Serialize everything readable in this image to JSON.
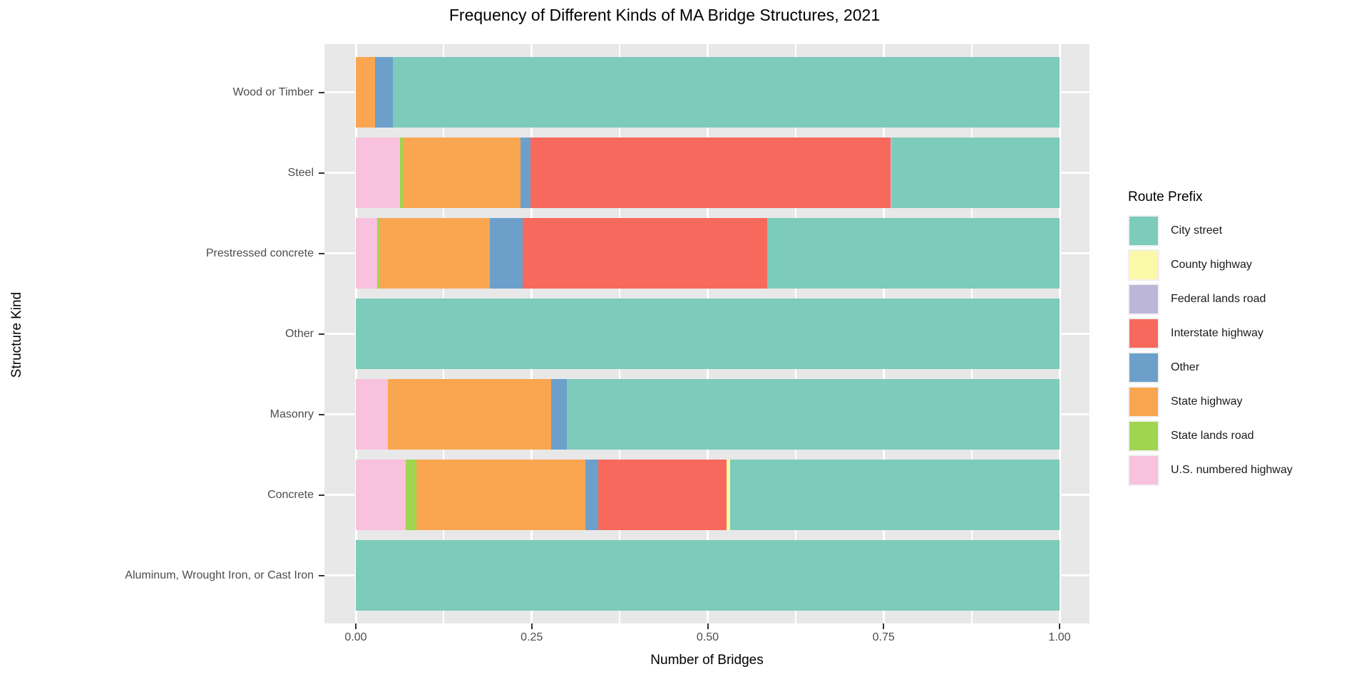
{
  "title": "Frequency of Different Kinds of MA Bridge Structures, 2021",
  "x_axis": {
    "label": "Number of Bridges",
    "ticks": [
      "0.00",
      "0.25",
      "0.50",
      "0.75",
      "1.00"
    ],
    "tick_values": [
      0,
      0.25,
      0.5,
      0.75,
      1
    ]
  },
  "y_axis": {
    "label": "Structure Kind"
  },
  "legend": {
    "title": "Route Prefix",
    "entries": [
      {
        "label": "City street",
        "color": "#7dcbba"
      },
      {
        "label": "County highway",
        "color": "#faf8a9"
      },
      {
        "label": "Federal lands road",
        "color": "#bcb7d9"
      },
      {
        "label": "Interstate highway",
        "color": "#f7695d"
      },
      {
        "label": "Other",
        "color": "#6ca0cb"
      },
      {
        "label": "State highway",
        "color": "#faa650"
      },
      {
        "label": "State lands road",
        "color": "#9fd54f"
      },
      {
        "label": "U.S. numbered highway",
        "color": "#f8c1dd"
      }
    ]
  },
  "colors": {
    "panel_background": "#e8e8e8",
    "gridline": "#ffffff",
    "tick_text": "#4d4d4d"
  },
  "chart_data": {
    "type": "bar",
    "orientation": "horizontal",
    "stacked": true,
    "normalized": true,
    "title": "Frequency of Different Kinds of MA Bridge Structures, 2021",
    "xlabel": "Number of Bridges",
    "ylabel": "Structure Kind",
    "xlim": [
      0,
      1
    ],
    "grid": true,
    "legend_position": "right",
    "legend_title": "Route Prefix",
    "categories": [
      "Wood or Timber",
      "Steel",
      "Prestressed concrete",
      "Other",
      "Masonry",
      "Concrete",
      "Aluminum, Wrought Iron, or Cast Iron"
    ],
    "series": [
      {
        "name": "U.S. numbered highway",
        "color": "#f8c1dd",
        "values": [
          0,
          0.063,
          0.03,
          0,
          0.046,
          0.071,
          0
        ]
      },
      {
        "name": "State lands road",
        "color": "#9fd54f",
        "values": [
          0,
          0.004,
          0.004,
          0,
          0,
          0.015,
          0
        ]
      },
      {
        "name": "State highway",
        "color": "#faa650",
        "values": [
          0.027,
          0.167,
          0.156,
          0,
          0.232,
          0.24,
          0
        ]
      },
      {
        "name": "Other",
        "color": "#6ca0cb",
        "values": [
          0.026,
          0.014,
          0.047,
          0,
          0.022,
          0.019,
          0
        ]
      },
      {
        "name": "Interstate highway",
        "color": "#f7695d",
        "values": [
          0,
          0.512,
          0.348,
          0,
          0,
          0.182,
          0
        ]
      },
      {
        "name": "Federal lands road",
        "color": "#bcb7d9",
        "values": [
          0,
          0.002,
          0,
          0,
          0,
          0,
          0
        ]
      },
      {
        "name": "County highway",
        "color": "#faf8a9",
        "values": [
          0,
          0,
          0,
          0,
          0,
          0.005,
          0
        ]
      },
      {
        "name": "City street",
        "color": "#7dcbba",
        "values": [
          0.947,
          0.238,
          0.415,
          1.0,
          0.7,
          0.468,
          1.0
        ]
      }
    ]
  }
}
